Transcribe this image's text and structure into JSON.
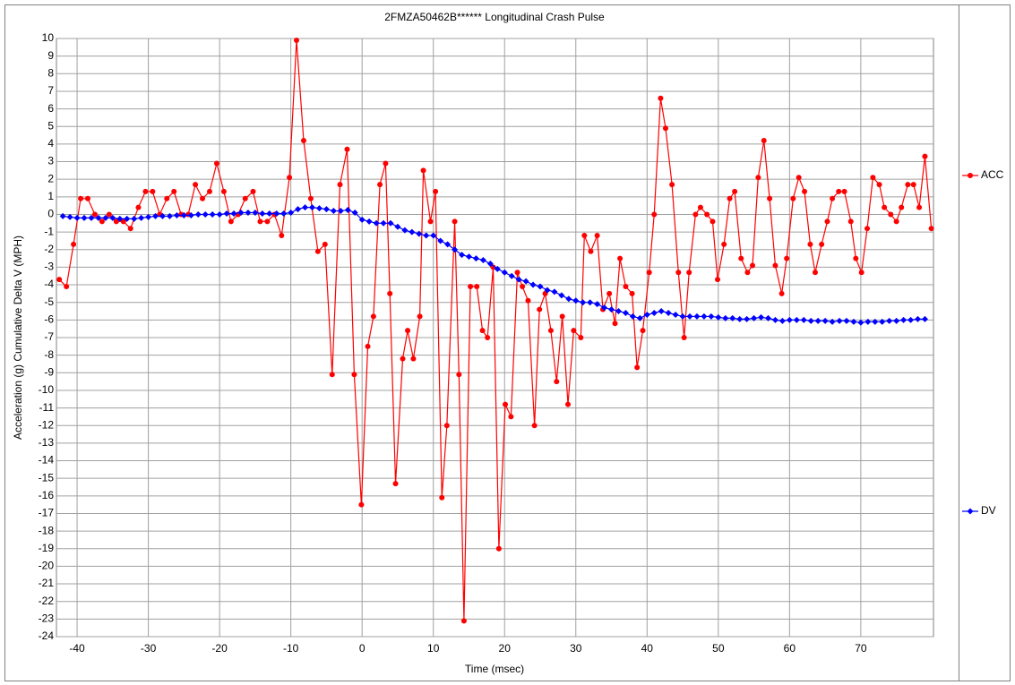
{
  "chart_data": {
    "type": "line",
    "title": "2FMZA50462B******  Longitudinal Crash Pulse",
    "xlabel": "Time (msec)",
    "ylabel": "Acceleration (g)   Cumulative Delta V (MPH)",
    "xlim": [
      -42.9,
      80.2
    ],
    "ylim": [
      -24,
      10
    ],
    "xticks": [
      -40,
      -30,
      -20,
      -10,
      0,
      10,
      20,
      30,
      40,
      50,
      60,
      70
    ],
    "yticks": [
      -24,
      -23,
      -22,
      -21,
      -20,
      -19,
      -18,
      -17,
      -16,
      -15,
      -14,
      -13,
      -12,
      -11,
      -10,
      -9,
      -8,
      -7,
      -6,
      -5,
      -4,
      -3,
      -2,
      -1,
      0,
      1,
      2,
      3,
      4,
      5,
      6,
      7,
      8,
      9,
      10
    ],
    "grid": true,
    "legend": "right",
    "series": [
      {
        "name": "ACC",
        "color": "#ff0000",
        "marker": "circle",
        "x": [
          -42.5,
          -41.5,
          -40.5,
          -39.5,
          -38.5,
          -37.5,
          -36.5,
          -35.5,
          -34.5,
          -33.5,
          -32.5,
          -31.4,
          -30.4,
          -29.4,
          -28.4,
          -27.4,
          -26.4,
          -25.4,
          -24.4,
          -23.4,
          -22.4,
          -21.4,
          -20.4,
          -19.4,
          -18.4,
          -17.4,
          -16.4,
          -15.3,
          -14.3,
          -13.3,
          -12.3,
          -11.3,
          -10.2,
          -9.2,
          -8.2,
          -7.2,
          -6.2,
          -5.2,
          -4.2,
          -3.1,
          -2.1,
          -1.1,
          -0.1,
          0.8,
          1.6,
          2.5,
          3.3,
          3.9,
          4.7,
          5.7,
          6.4,
          7.2,
          8.1,
          8.6,
          9.6,
          10.3,
          11.2,
          11.9,
          13.0,
          13.6,
          14.3,
          15.2,
          16.1,
          16.9,
          17.6,
          18.4,
          19.2,
          20.1,
          20.9,
          21.8,
          22.5,
          23.3,
          24.2,
          24.9,
          25.7,
          26.5,
          27.3,
          28.1,
          28.9,
          29.7,
          30.7,
          31.2,
          32.1,
          33.0,
          33.8,
          34.7,
          35.5,
          36.2,
          37.0,
          37.9,
          38.6,
          39.4,
          40.3,
          41.0,
          41.9,
          42.6,
          43.5,
          44.4,
          45.2,
          45.9,
          46.8,
          47.5,
          48.4,
          49.2,
          49.9,
          50.8,
          51.6,
          52.3,
          53.2,
          54.1,
          54.8,
          55.6,
          56.4,
          57.2,
          58.0,
          58.9,
          59.6,
          60.5,
          61.3,
          62.1,
          62.9,
          63.6,
          64.5,
          65.3,
          66.0,
          66.9,
          67.7,
          68.6,
          69.3,
          70.1,
          70.9,
          71.7,
          72.6,
          73.3,
          74.2,
          75.0,
          75.7,
          76.6,
          77.4,
          78.2,
          79.0,
          79.9
        ],
        "values": [
          -3.7,
          -4.1,
          -1.7,
          0.9,
          0.9,
          0,
          -0.4,
          0,
          -0.4,
          -0.4,
          -0.8,
          0.4,
          1.3,
          1.3,
          0,
          0.9,
          1.3,
          0,
          0,
          1.7,
          0.9,
          1.3,
          2.9,
          1.3,
          -0.4,
          0,
          0.9,
          1.3,
          -0.4,
          -0.4,
          0,
          -1.2,
          2.1,
          9.9,
          4.2,
          0.9,
          -2.1,
          -1.7,
          -9.1,
          1.7,
          3.7,
          -9.1,
          -16.5,
          -7.5,
          -5.8,
          1.7,
          2.9,
          -4.5,
          -15.3,
          -8.2,
          -6.6,
          -8.2,
          -5.8,
          2.5,
          -0.4,
          1.3,
          -16.1,
          -12,
          -0.4,
          -9.1,
          -23.1,
          -4.1,
          -4.1,
          -6.6,
          -7,
          -3,
          -19,
          -10.8,
          -11.5,
          -3.3,
          -4.1,
          -4.9,
          -12,
          -5.4,
          -4.5,
          -6.6,
          -9.5,
          -5.8,
          -10.8,
          -6.6,
          -7,
          -1.2,
          -2.1,
          -1.2,
          -5.4,
          -4.5,
          -6.2,
          -2.5,
          -4.1,
          -4.5,
          -8.7,
          -6.6,
          -3.3,
          0,
          6.6,
          4.9,
          1.7,
          -3.3,
          -7,
          -3.3,
          0,
          0.4,
          0,
          -0.4,
          -3.7,
          -1.7,
          0.9,
          1.3,
          -2.5,
          -3.3,
          -2.9,
          2.1,
          4.2,
          0.9,
          -2.9,
          -4.5,
          -2.5,
          0.9,
          2.1,
          1.3,
          -1.7,
          -3.3,
          -1.7,
          -0.4,
          0.9,
          1.3,
          1.3,
          -0.4,
          -2.5,
          -3.3,
          -0.8,
          2.1,
          1.7,
          0.4,
          0,
          -0.4,
          0.4,
          1.7,
          1.7,
          0.4,
          3.3,
          -0.8
        ]
      },
      {
        "name": "DV",
        "color": "#0000ff",
        "marker": "diamond",
        "x": [
          -42,
          -41,
          -40,
          -39,
          -38,
          -37,
          -36,
          -35,
          -34,
          -33,
          -32,
          -31,
          -30,
          -29,
          -28,
          -27,
          -26,
          -25,
          -24,
          -23,
          -22,
          -21,
          -20,
          -19,
          -18,
          -17,
          -16,
          -15,
          -14,
          -13,
          -12,
          -11,
          -10,
          -9,
          -8,
          -7,
          -6,
          -5,
          -4,
          -3,
          -2,
          -1,
          0,
          1,
          2,
          3,
          4,
          5,
          6,
          7,
          8,
          9,
          10,
          11,
          12,
          13,
          14,
          15,
          16,
          17,
          18,
          19,
          20,
          21,
          22,
          23,
          24,
          25,
          26,
          27,
          28,
          29,
          30,
          31,
          32,
          33,
          34,
          35,
          36,
          37,
          38,
          39,
          40,
          41,
          42,
          43,
          44,
          45,
          46,
          47,
          48,
          49,
          50,
          51,
          52,
          53,
          54,
          55,
          56,
          57,
          58,
          59,
          60,
          61,
          62,
          63,
          64,
          65,
          66,
          67,
          68,
          69,
          70,
          71,
          72,
          73,
          74,
          75,
          76,
          77,
          78,
          79
        ],
        "values": [
          -0.1,
          -0.15,
          -0.2,
          -0.2,
          -0.2,
          -0.2,
          -0.2,
          -0.2,
          -0.25,
          -0.25,
          -0.25,
          -0.2,
          -0.15,
          -0.1,
          -0.1,
          -0.1,
          -0.05,
          -0.05,
          -0.05,
          0,
          0,
          0,
          0,
          0.05,
          0.05,
          0.1,
          0.1,
          0.1,
          0.05,
          0.05,
          0.05,
          0.05,
          0.1,
          0.3,
          0.4,
          0.4,
          0.35,
          0.3,
          0.2,
          0.2,
          0.25,
          0.1,
          -0.3,
          -0.4,
          -0.5,
          -0.5,
          -0.5,
          -0.7,
          -0.9,
          -1.0,
          -1.1,
          -1.2,
          -1.2,
          -1.5,
          -1.7,
          -2.0,
          -2.3,
          -2.4,
          -2.5,
          -2.6,
          -2.8,
          -3.1,
          -3.3,
          -3.5,
          -3.7,
          -3.8,
          -4.0,
          -4.1,
          -4.3,
          -4.4,
          -4.6,
          -4.8,
          -4.9,
          -5.0,
          -5.0,
          -5.1,
          -5.3,
          -5.4,
          -5.5,
          -5.6,
          -5.8,
          -5.9,
          -5.7,
          -5.6,
          -5.5,
          -5.6,
          -5.7,
          -5.8,
          -5.8,
          -5.8,
          -5.8,
          -5.8,
          -5.85,
          -5.9,
          -5.9,
          -5.95,
          -5.95,
          -5.9,
          -5.85,
          -5.9,
          -6.0,
          -6.05,
          -6.0,
          -6.0,
          -6.0,
          -6.05,
          -6.05,
          -6.05,
          -6.1,
          -6.05,
          -6.05,
          -6.1,
          -6.15,
          -6.1,
          -6.1,
          -6.1,
          -6.05,
          -6.05,
          -6.0,
          -6.0,
          -5.95,
          -5.95
        ]
      }
    ]
  }
}
